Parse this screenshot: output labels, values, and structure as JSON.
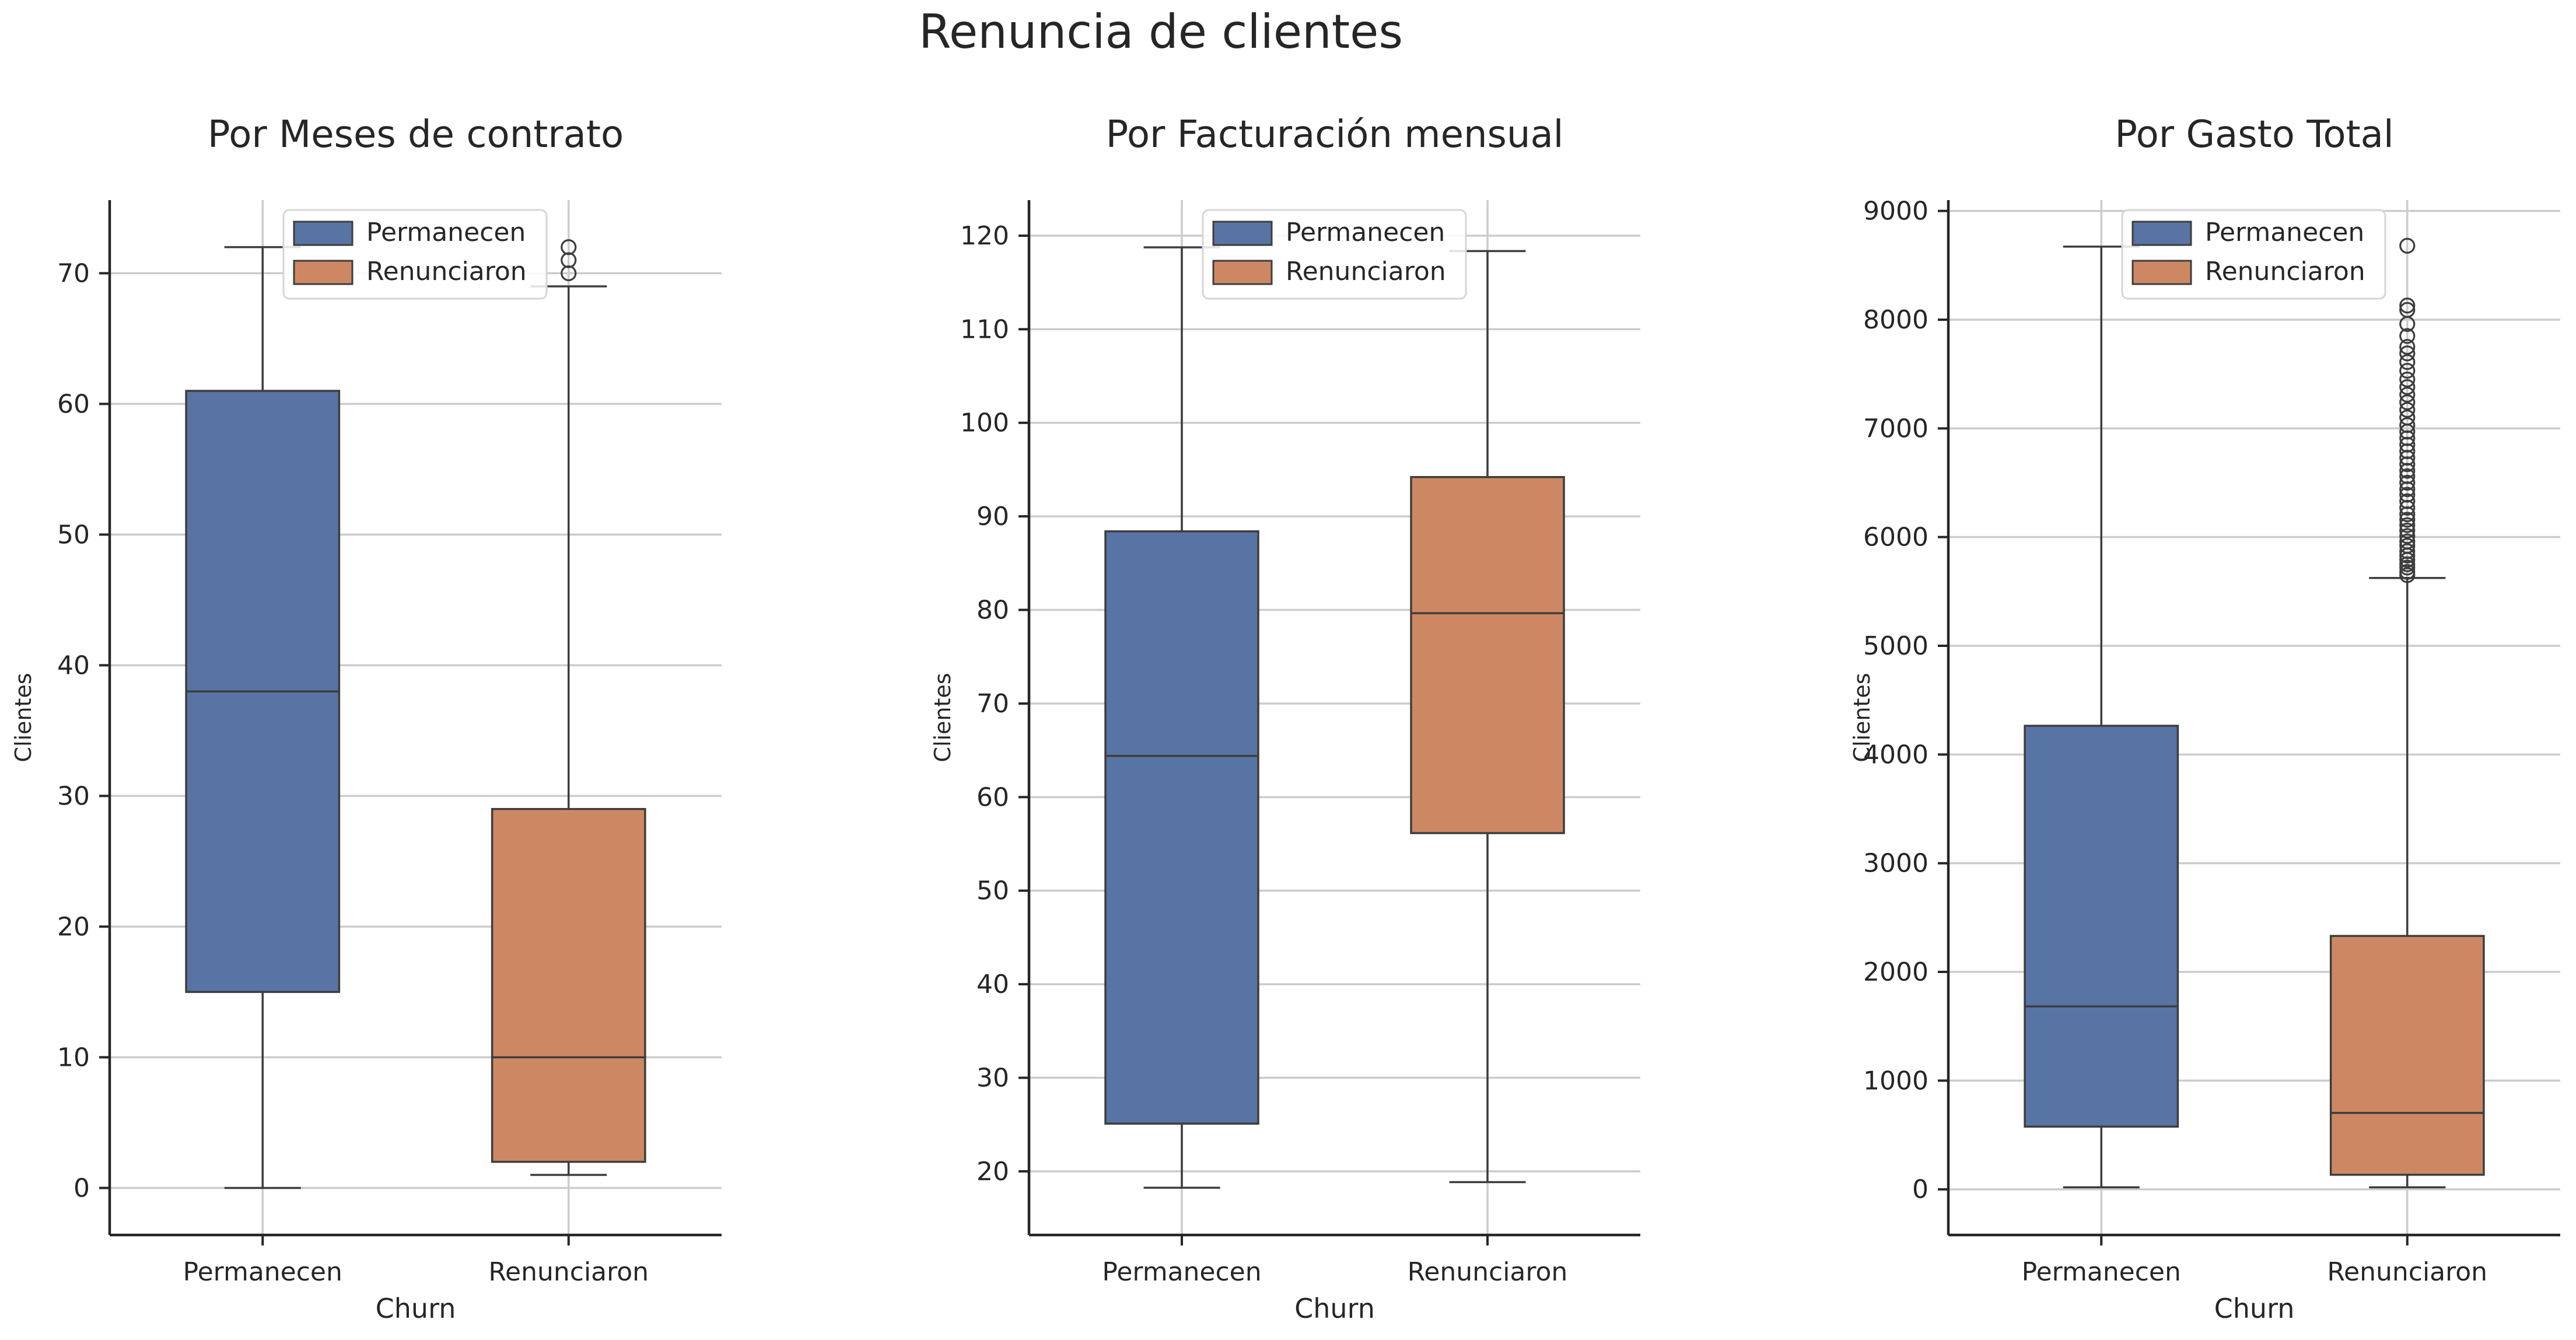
{
  "figure_title": "Renuncia de clientes",
  "colors": {
    "permanecen": "#5874a4",
    "renunciaron": "#cd8863",
    "grid": "#cccccc",
    "axis": "#262626",
    "stroke": "#3d3d3d"
  },
  "chart_data": [
    {
      "type": "box",
      "title": "Por Meses de contrato",
      "xlabel": "Churn",
      "ylabel": "Clientes",
      "ylim": [
        -3.6,
        75.6
      ],
      "yticks": [
        0,
        10,
        20,
        30,
        40,
        50,
        60,
        70
      ],
      "categories": [
        "Permanecen",
        "Renunciaron"
      ],
      "legend": {
        "entries": [
          "Permanecen",
          "Renunciaron"
        ],
        "position": "top-center"
      },
      "grid": true,
      "boxes": [
        {
          "name": "Permanecen",
          "whisker_low": 0,
          "q1": 15,
          "median": 38,
          "q3": 61,
          "whisker_high": 72,
          "outliers": []
        },
        {
          "name": "Renunciaron",
          "whisker_low": 1,
          "q1": 2,
          "median": 10,
          "q3": 29,
          "whisker_high": 69,
          "outliers": [
            70,
            71,
            72
          ]
        }
      ]
    },
    {
      "type": "box",
      "title": "Por Facturación mensual",
      "xlabel": "Churn",
      "ylabel": "Clientes",
      "ylim": [
        13.2,
        123.8
      ],
      "yticks": [
        20,
        30,
        40,
        50,
        60,
        70,
        80,
        90,
        100,
        110,
        120
      ],
      "categories": [
        "Permanecen",
        "Renunciaron"
      ],
      "legend": {
        "entries": [
          "Permanecen",
          "Renunciaron"
        ],
        "position": "top-center"
      },
      "grid": true,
      "boxes": [
        {
          "name": "Permanecen",
          "whisker_low": 18.25,
          "q1": 25.1,
          "median": 64.4,
          "q3": 88.4,
          "whisker_high": 118.75,
          "outliers": []
        },
        {
          "name": "Renunciaron",
          "whisker_low": 18.85,
          "q1": 56.15,
          "median": 79.65,
          "q3": 94.2,
          "whisker_high": 118.35,
          "outliers": []
        }
      ]
    },
    {
      "type": "box",
      "title": "Por Gasto Total",
      "xlabel": "Churn",
      "ylabel": "Clientes",
      "ylim": [
        -420,
        9100
      ],
      "yticks": [
        0,
        1000,
        2000,
        3000,
        4000,
        5000,
        6000,
        7000,
        8000,
        9000
      ],
      "categories": [
        "Permanecen",
        "Renunciaron"
      ],
      "legend": {
        "entries": [
          "Permanecen",
          "Renunciaron"
        ],
        "position": "top-center"
      },
      "grid": true,
      "boxes": [
        {
          "name": "Permanecen",
          "whisker_low": 18.8,
          "q1": 577,
          "median": 1683,
          "q3": 4264,
          "whisker_high": 8672,
          "outliers": []
        },
        {
          "name": "Renunciaron",
          "whisker_low": 18.85,
          "q1": 134,
          "median": 703,
          "q3": 2331,
          "whisker_high": 5624,
          "outliers": [
            5650,
            5680,
            5720,
            5750,
            5790,
            5830,
            5870,
            5920,
            5960,
            6010,
            6060,
            6110,
            6160,
            6210,
            6270,
            6330,
            6390,
            6440,
            6500,
            6560,
            6610,
            6670,
            6730,
            6790,
            6850,
            6910,
            6970,
            7030,
            7100,
            7170,
            7240,
            7310,
            7380,
            7450,
            7530,
            7610,
            7690,
            7750,
            7850,
            7960,
            8090,
            8130,
            8680
          ]
        }
      ]
    }
  ]
}
